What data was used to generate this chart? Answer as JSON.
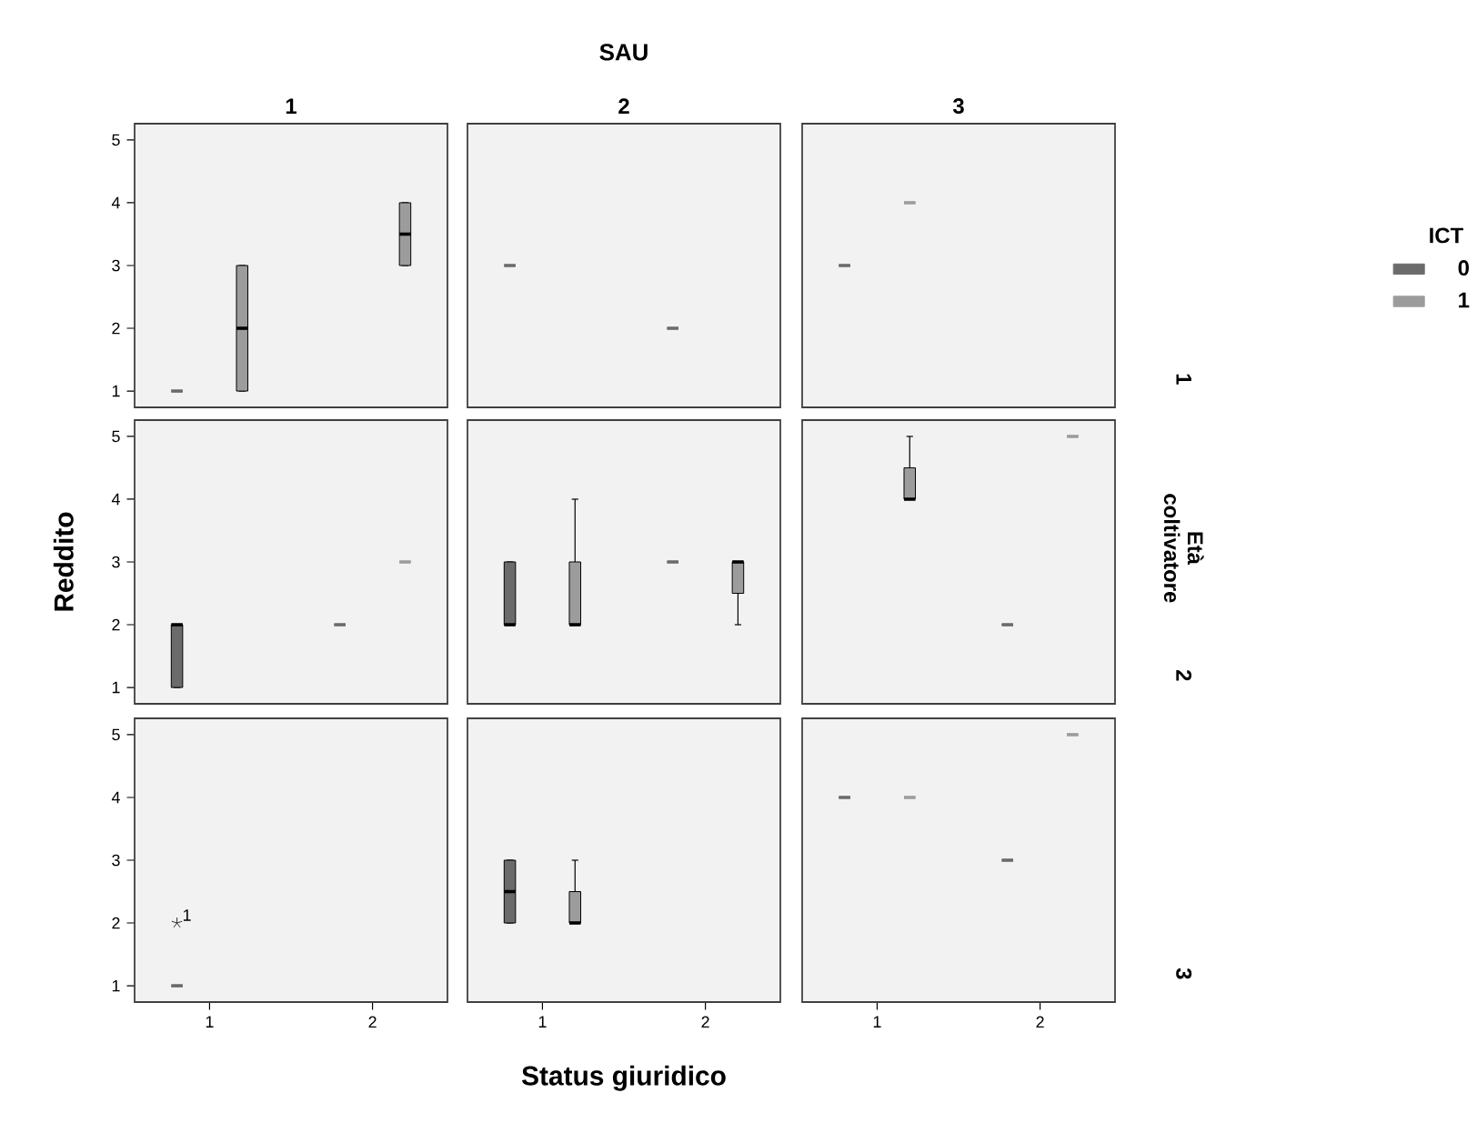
{
  "chart_data": [
    {
      "type": "box",
      "title": "1",
      "categories": [
        "1",
        "2"
      ],
      "ylim": [
        0.74,
        5.26
      ],
      "yticks": [
        1,
        2,
        3,
        4,
        5
      ],
      "tick_labels": "y",
      "series": [
        {
          "color": "#6b6b6b",
          "boxes": [
            {
              "low": 1,
              "q1": 1,
              "median": 1,
              "q3": 1,
              "high": 1
            },
            null
          ]
        },
        {
          "color": "#9c9c9c",
          "boxes": [
            {
              "low": 1,
              "q1": 1,
              "median": 2,
              "q3": 3,
              "high": 3
            },
            {
              "low": 3,
              "q1": 3,
              "median": 3.5,
              "q3": 4,
              "high": 4
            }
          ]
        }
      ]
    },
    {
      "type": "box",
      "title": "2",
      "categories": [
        "1",
        "2"
      ],
      "ylim": [
        0.74,
        5.26
      ],
      "tick_labels": false,
      "annotations": [
        "SAU"
      ],
      "series": [
        {
          "color": "#6b6b6b",
          "boxes": [
            {
              "low": 3,
              "q1": 3,
              "median": 3,
              "q3": 3,
              "high": 3
            },
            {
              "low": 2,
              "q1": 2,
              "median": 2,
              "q3": 2,
              "high": 2
            }
          ]
        },
        {
          "color": "#9c9c9c",
          "boxes": [
            null,
            null
          ]
        }
      ]
    },
    {
      "type": "box",
      "title": "3",
      "categories": [
        "1",
        "2"
      ],
      "ylim": [
        0.74,
        5.26
      ],
      "tick_labels": false,
      "annotations": [
        "1"
      ],
      "legend": "right",
      "legend_title": "ICT",
      "series": [
        {
          "name": "0",
          "color": "#6b6b6b",
          "boxes": [
            {
              "low": 3,
              "q1": 3,
              "median": 3,
              "q3": 3,
              "high": 3
            },
            null
          ]
        },
        {
          "name": "1",
          "color": "#9c9c9c",
          "boxes": [
            {
              "low": 4,
              "q1": 4,
              "median": 4,
              "q3": 4,
              "high": 4
            },
            null
          ]
        }
      ]
    },
    {
      "type": "box",
      "categories": [
        "1",
        "2"
      ],
      "ylim": [
        0.74,
        5.26
      ],
      "yticks": [
        1,
        2,
        3,
        4,
        5
      ],
      "tick_labels": "y",
      "ylabel": "Reddito",
      "series": [
        {
          "color": "#6b6b6b",
          "boxes": [
            {
              "low": 1,
              "q1": 1,
              "median": 2,
              "q3": 2,
              "high": 2
            },
            {
              "low": 2,
              "q1": 2,
              "median": 2,
              "q3": 2,
              "high": 2
            }
          ]
        },
        {
          "color": "#9c9c9c",
          "boxes": [
            null,
            {
              "low": 3,
              "q1": 3,
              "median": 3,
              "q3": 3,
              "high": 3
            }
          ]
        }
      ]
    },
    {
      "type": "box",
      "categories": [
        "1",
        "2"
      ],
      "ylim": [
        0.74,
        5.26
      ],
      "tick_labels": false,
      "series": [
        {
          "color": "#6b6b6b",
          "boxes": [
            {
              "low": 2,
              "q1": 2,
              "median": 2,
              "q3": 3,
              "high": 3
            },
            {
              "low": 3,
              "q1": 3,
              "median": 3,
              "q3": 3,
              "high": 3
            }
          ]
        },
        {
          "color": "#9c9c9c",
          "boxes": [
            {
              "low": 2,
              "q1": 2,
              "median": 2,
              "q3": 3,
              "high": 4
            },
            {
              "low": 2,
              "q1": 2.5,
              "median": 3,
              "q3": 3,
              "high": 3
            }
          ]
        }
      ]
    },
    {
      "type": "box",
      "categories": [
        "1",
        "2"
      ],
      "ylim": [
        0.74,
        5.26
      ],
      "tick_labels": false,
      "annotations": [
        "Età coltivatore",
        "2"
      ],
      "series": [
        {
          "color": "#6b6b6b",
          "boxes": [
            null,
            {
              "low": 2,
              "q1": 2,
              "median": 2,
              "q3": 2,
              "high": 2
            }
          ]
        },
        {
          "color": "#9c9c9c",
          "boxes": [
            {
              "low": 4,
              "q1": 4,
              "median": 4,
              "q3": 4.5,
              "high": 5
            },
            {
              "low": 5,
              "q1": 5,
              "median": 5,
              "q3": 5,
              "high": 5
            }
          ]
        }
      ]
    },
    {
      "type": "box",
      "categories": [
        "1",
        "2"
      ],
      "ylim": [
        0.74,
        5.26
      ],
      "yticks": [
        1,
        2,
        3,
        4,
        5
      ],
      "annotations": [
        "1"
      ],
      "series": [
        {
          "color": "#6b6b6b",
          "boxes": [
            {
              "low": 1,
              "q1": 1,
              "median": 1,
              "q3": 1,
              "high": 1,
              "outliers": [
                2
              ]
            },
            null
          ]
        },
        {
          "color": "#9c9c9c",
          "boxes": [
            null,
            null
          ]
        }
      ]
    },
    {
      "type": "box",
      "categories": [
        "1",
        "2"
      ],
      "ylim": [
        0.74,
        5.26
      ],
      "tick_labels": "x",
      "xlabel": "Status giuridico",
      "series": [
        {
          "color": "#6b6b6b",
          "boxes": [
            {
              "low": 2,
              "q1": 2,
              "median": 2.5,
              "q3": 3,
              "high": 3
            },
            null
          ]
        },
        {
          "color": "#9c9c9c",
          "boxes": [
            {
              "low": 2,
              "q1": 2,
              "median": 2,
              "q3": 2.5,
              "high": 3
            },
            null
          ]
        }
      ]
    },
    {
      "type": "box",
      "categories": [
        "1",
        "2"
      ],
      "ylim": [
        0.74,
        5.26
      ],
      "tick_labels": "x",
      "annotations": [
        "3"
      ],
      "series": [
        {
          "color": "#6b6b6b",
          "boxes": [
            {
              "low": 4,
              "q1": 4,
              "median": 4,
              "q3": 4,
              "high": 4
            },
            {
              "low": 3,
              "q1": 3,
              "median": 3,
              "q3": 3,
              "high": 3
            }
          ]
        },
        {
          "color": "#9c9c9c",
          "boxes": [
            {
              "low": 4,
              "q1": 4,
              "median": 4,
              "q3": 4,
              "high": 4
            },
            {
              "low": 5,
              "q1": 5,
              "median": 5,
              "q3": 5,
              "high": 5
            }
          ]
        }
      ]
    }
  ]
}
